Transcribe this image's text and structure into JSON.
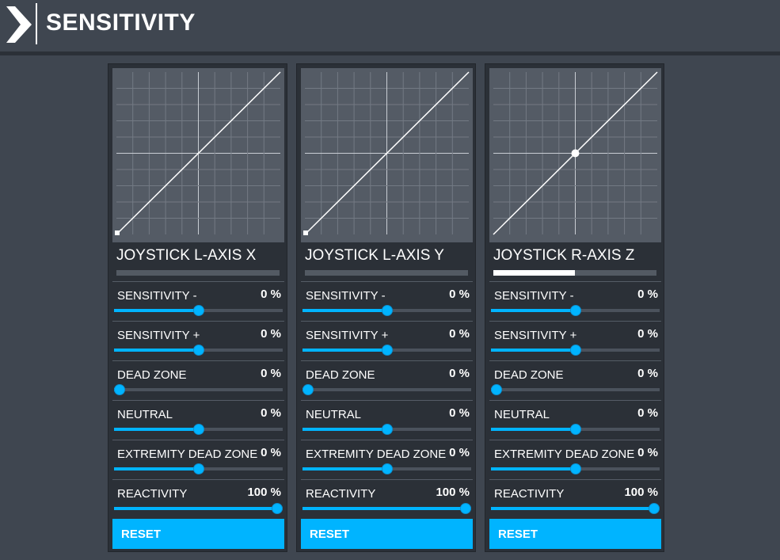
{
  "header": {
    "title": "SENSITIVITY"
  },
  "panels": [
    {
      "axis_name": "JOYSTICK L-AXIS X",
      "input_level": 0.0,
      "marker": "square-bottom-left",
      "settings": [
        {
          "label": "SENSITIVITY -",
          "value": "0 %",
          "slider": 0.5
        },
        {
          "label": "SENSITIVITY +",
          "value": "0 %",
          "slider": 0.5
        },
        {
          "label": "DEAD ZONE",
          "value": "0 %",
          "slider": 0.0
        },
        {
          "label": "NEUTRAL",
          "value": "0 %",
          "slider": 0.5
        },
        {
          "label": "EXTREMITY DEAD ZONE",
          "value": "0 %",
          "slider": 0.5
        },
        {
          "label": "REACTIVITY",
          "value": "100 %",
          "slider": 1.0
        }
      ],
      "reset_label": "RESET"
    },
    {
      "axis_name": "JOYSTICK L-AXIS Y",
      "input_level": 0.0,
      "marker": "square-bottom-left",
      "settings": [
        {
          "label": "SENSITIVITY -",
          "value": "0 %",
          "slider": 0.5
        },
        {
          "label": "SENSITIVITY +",
          "value": "0 %",
          "slider": 0.5
        },
        {
          "label": "DEAD ZONE",
          "value": "0 %",
          "slider": 0.0
        },
        {
          "label": "NEUTRAL",
          "value": "0 %",
          "slider": 0.5
        },
        {
          "label": "EXTREMITY DEAD ZONE",
          "value": "0 %",
          "slider": 0.5
        },
        {
          "label": "REACTIVITY",
          "value": "100 %",
          "slider": 1.0
        }
      ],
      "reset_label": "RESET"
    },
    {
      "axis_name": "JOYSTICK R-AXIS Z",
      "input_level": 0.5,
      "marker": "dot-center",
      "settings": [
        {
          "label": "SENSITIVITY -",
          "value": "0 %",
          "slider": 0.5
        },
        {
          "label": "SENSITIVITY +",
          "value": "0 %",
          "slider": 0.5
        },
        {
          "label": "DEAD ZONE",
          "value": "0 %",
          "slider": 0.0
        },
        {
          "label": "NEUTRAL",
          "value": "0 %",
          "slider": 0.5
        },
        {
          "label": "EXTREMITY DEAD ZONE",
          "value": "0 %",
          "slider": 0.5
        },
        {
          "label": "REACTIVITY",
          "value": "100 %",
          "slider": 1.0
        }
      ],
      "reset_label": "RESET"
    }
  ],
  "colors": {
    "accent": "#00b4ff",
    "background": "#3f4650",
    "panel": "#2b3037",
    "graph": "#545b65"
  }
}
